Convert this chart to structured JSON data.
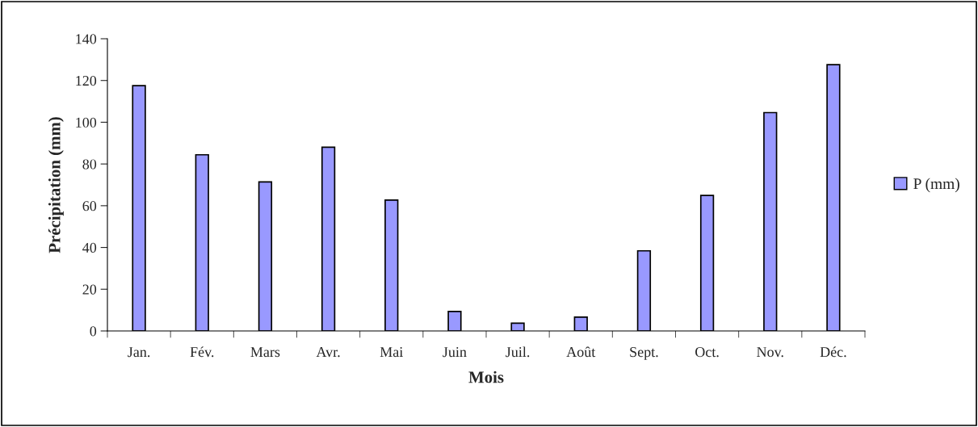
{
  "chart_data": {
    "type": "bar",
    "xlabel": "Mois",
    "ylabel": "Précipitation (mm)",
    "categories": [
      "Jan.",
      "Fév.",
      "Mars",
      "Avr.",
      "Mai",
      "Juin",
      "Juil.",
      "Août",
      "Sept.",
      "Oct.",
      "Nov.",
      "Déc."
    ],
    "series": [
      {
        "name": "P (mm)",
        "color": "#9999ff",
        "values": [
          117.5,
          84.4,
          71.4,
          88.0,
          62.7,
          9.3,
          3.7,
          6.6,
          38.4,
          64.9,
          104.6,
          127.6
        ]
      }
    ],
    "ylim": [
      0,
      140
    ],
    "yticks": [
      0,
      20,
      40,
      60,
      80,
      100,
      120,
      140
    ],
    "grid": false,
    "legend": "right"
  }
}
